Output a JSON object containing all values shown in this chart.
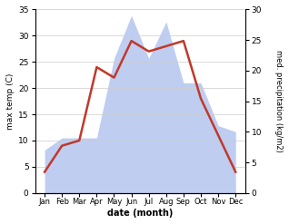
{
  "months": [
    "Jan",
    "Feb",
    "Mar",
    "Apr",
    "May",
    "Jun",
    "Jul",
    "Aug",
    "Sep",
    "Oct",
    "Nov",
    "Dec"
  ],
  "temperature": [
    4,
    9,
    10,
    24,
    22,
    29,
    27,
    28,
    29,
    18,
    11,
    4
  ],
  "precipitation": [
    7,
    9,
    9,
    9,
    22,
    29,
    22,
    28,
    18,
    18,
    11,
    10
  ],
  "temp_color": "#c0392b",
  "precip_color": "#b8c8f0",
  "temp_ylim": [
    0,
    35
  ],
  "precip_ylim": [
    0,
    30
  ],
  "temp_yticks": [
    0,
    5,
    10,
    15,
    20,
    25,
    30,
    35
  ],
  "precip_yticks": [
    0,
    5,
    10,
    15,
    20,
    25,
    30
  ],
  "ylabel_left": "max temp (C)",
  "ylabel_right": "med. precipitation (kg/m2)",
  "xlabel": "date (month)",
  "bg_color": "#ffffff",
  "fig_width": 3.18,
  "fig_height": 2.47
}
